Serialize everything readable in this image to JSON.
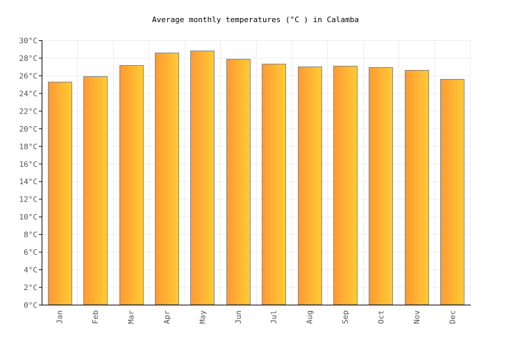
{
  "chart_data": {
    "type": "bar",
    "title": "Average monthly temperatures (°C ) in Calamba",
    "categories": [
      "Jan",
      "Feb",
      "Mar",
      "Apr",
      "May",
      "Jun",
      "Jul",
      "Aug",
      "Sep",
      "Oct",
      "Nov",
      "Dec"
    ],
    "values": [
      25.3,
      25.9,
      27.2,
      28.6,
      28.8,
      27.9,
      27.3,
      27.0,
      27.1,
      26.9,
      26.6,
      25.6
    ],
    "ylim": [
      0,
      30
    ],
    "ytick_step": 2,
    "ytick_labels": [
      "0°C",
      "2°C",
      "4°C",
      "6°C",
      "8°C",
      "10°C",
      "12°C",
      "14°C",
      "16°C",
      "18°C",
      "20°C",
      "22°C",
      "24°C",
      "26°C",
      "28°C",
      "30°C"
    ],
    "xlabel": "",
    "ylabel": "",
    "grid": true,
    "legend": "none",
    "colors": {
      "bar_left": "#ff9933",
      "bar_right": "#ffcc33",
      "bar_border": "#888888",
      "grid": "#eeeeee",
      "axis": "#000000",
      "tick_text": "#555555"
    }
  }
}
